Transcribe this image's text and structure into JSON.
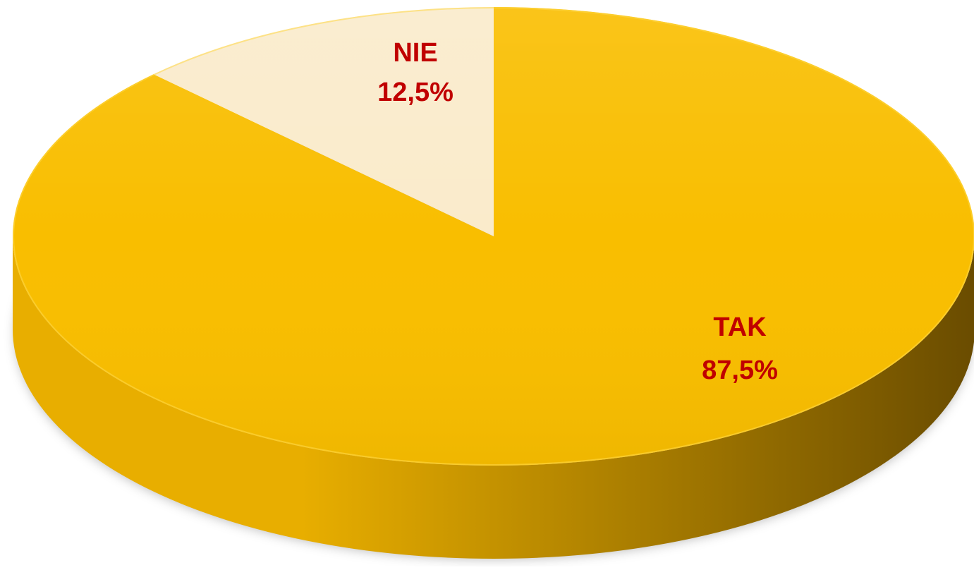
{
  "chart_data": {
    "type": "pie",
    "style": "3d",
    "start_angle_deg": 0,
    "direction": "clockwise",
    "slices": [
      {
        "label": "TAK",
        "value": 87.5,
        "value_text": "87,5%",
        "color": "#F9BE00",
        "side_light": "#E8AE00",
        "side_dark": "#6A4C00"
      },
      {
        "label": "NIE",
        "value": 12.5,
        "value_text": "12,5%",
        "color": "#FAEBCB",
        "side_light": "#EDDDB8",
        "side_dark": "#BFAE86"
      }
    ],
    "label_color": "#C00000",
    "legend": "none",
    "title": ""
  }
}
